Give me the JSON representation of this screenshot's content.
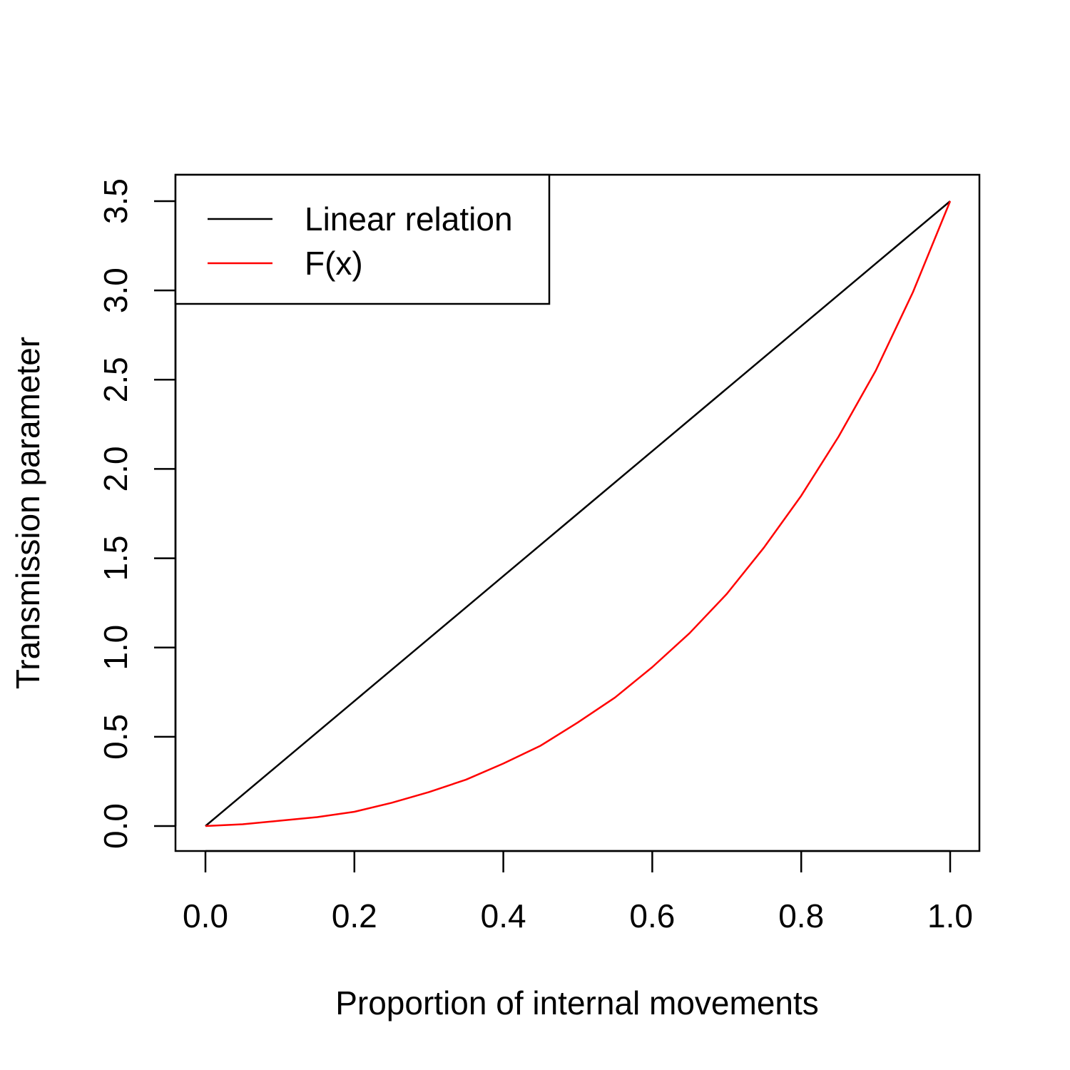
{
  "chart_data": {
    "type": "line",
    "title": "",
    "xlabel": "Proportion of internal movements",
    "ylabel": "Transmission parameter",
    "xlim": [
      0.0,
      1.0
    ],
    "ylim": [
      0.0,
      3.5
    ],
    "x_ticks": [
      "0.0",
      "0.2",
      "0.4",
      "0.6",
      "0.8",
      "1.0"
    ],
    "y_ticks": [
      "0.0",
      "0.5",
      "1.0",
      "1.5",
      "2.0",
      "2.5",
      "3.0",
      "3.5"
    ],
    "grid": false,
    "legend_position": "top-left",
    "series": [
      {
        "name": "Linear relation",
        "color": "#000000",
        "x": [
          0.0,
          0.1,
          0.2,
          0.3,
          0.4,
          0.5,
          0.6,
          0.7,
          0.8,
          0.9,
          1.0
        ],
        "y": [
          0.0,
          0.35,
          0.7,
          1.05,
          1.4,
          1.75,
          2.1,
          2.45,
          2.8,
          3.15,
          3.5
        ]
      },
      {
        "name": "F(x)",
        "color": "#ff0000",
        "x": [
          0.0,
          0.05,
          0.1,
          0.15,
          0.2,
          0.25,
          0.3,
          0.35,
          0.4,
          0.45,
          0.5,
          0.55,
          0.6,
          0.65,
          0.7,
          0.75,
          0.8,
          0.85,
          0.9,
          0.95,
          1.0
        ],
        "y": [
          0.0,
          0.01,
          0.03,
          0.05,
          0.08,
          0.13,
          0.19,
          0.26,
          0.35,
          0.45,
          0.58,
          0.72,
          0.89,
          1.08,
          1.3,
          1.56,
          1.85,
          2.18,
          2.55,
          2.99,
          3.5
        ]
      }
    ]
  }
}
